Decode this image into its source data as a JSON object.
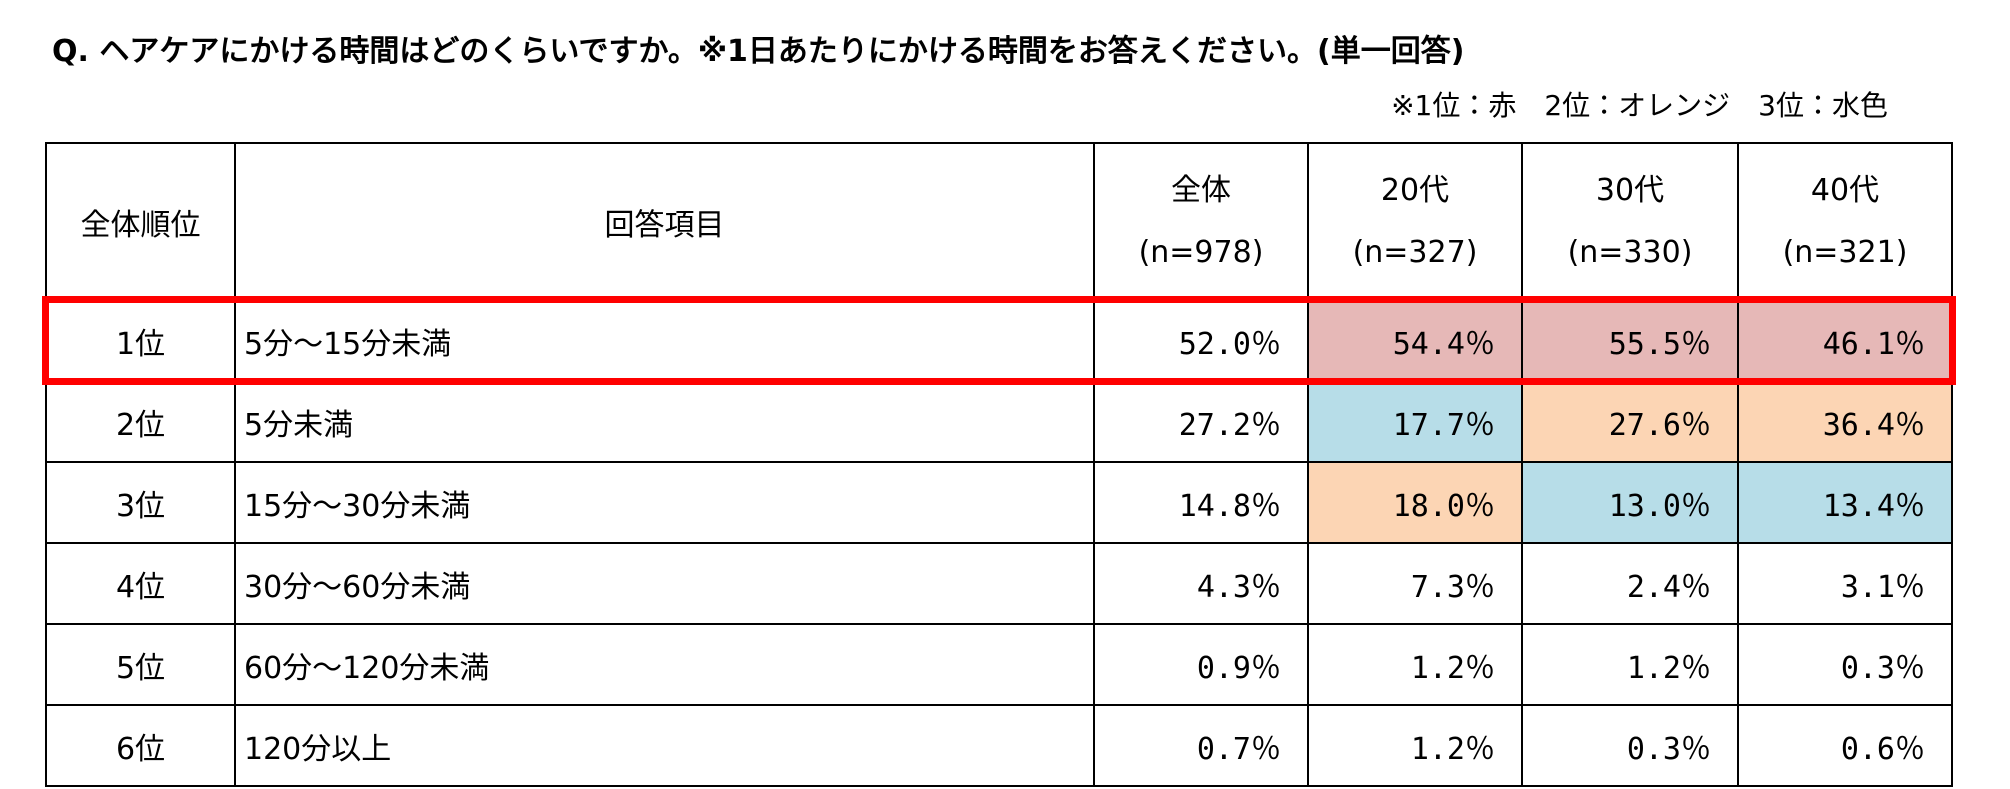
{
  "title": "Q. ヘアケアにかける時間はどのくらいですか。※1日あたりにかける時間をお答えください。(単一回答)",
  "note": "※1位：赤　2位：オレンジ　3位：水色",
  "table": {
    "header": [
      "全体順位",
      "回答項目",
      {
        "label": "全体",
        "n": "(n=978)"
      },
      {
        "label": "20代",
        "n": "(n=327)"
      },
      {
        "label": "30代",
        "n": "(n=330)"
      },
      {
        "label": "40代",
        "n": "(n=321)"
      }
    ],
    "rows": [
      [
        "1位",
        "5分～15分未満",
        "52.0％",
        "54.4％",
        "55.5％",
        "46.1％"
      ],
      [
        "2位",
        "5分未満",
        "27.2％",
        "17.7％",
        "27.6％",
        "36.4％"
      ],
      [
        "3位",
        "15分～30分未満",
        "14.8％",
        "18.0％",
        "13.0％",
        "13.4％"
      ],
      [
        "4位",
        "30分～60分未満",
        "4.3％",
        "7.3％",
        "2.4％",
        "3.1％"
      ],
      [
        "5位",
        "60分～120分未満",
        "0.9％",
        "1.2％",
        "1.2％",
        "0.3％"
      ],
      [
        "6位",
        "120分以上",
        "0.7％",
        "1.2％",
        "0.3％",
        "0.6％"
      ]
    ],
    "cell_fills": [
      [
        null,
        null,
        null,
        "#e6b8b7",
        "#e6b8b7",
        "#e6b8b7"
      ],
      [
        null,
        null,
        null,
        "#b7dde8",
        "#fcd5b4",
        "#fcd5b4"
      ],
      [
        null,
        null,
        null,
        "#fcd5b4",
        "#b7dde8",
        "#b7dde8"
      ],
      [
        null,
        null,
        null,
        null,
        null,
        null
      ],
      [
        null,
        null,
        null,
        null,
        null,
        null
      ],
      [
        null,
        null,
        null,
        null,
        null,
        null
      ]
    ],
    "highlight_row": 0,
    "highlight_color": "#ff0000"
  }
}
